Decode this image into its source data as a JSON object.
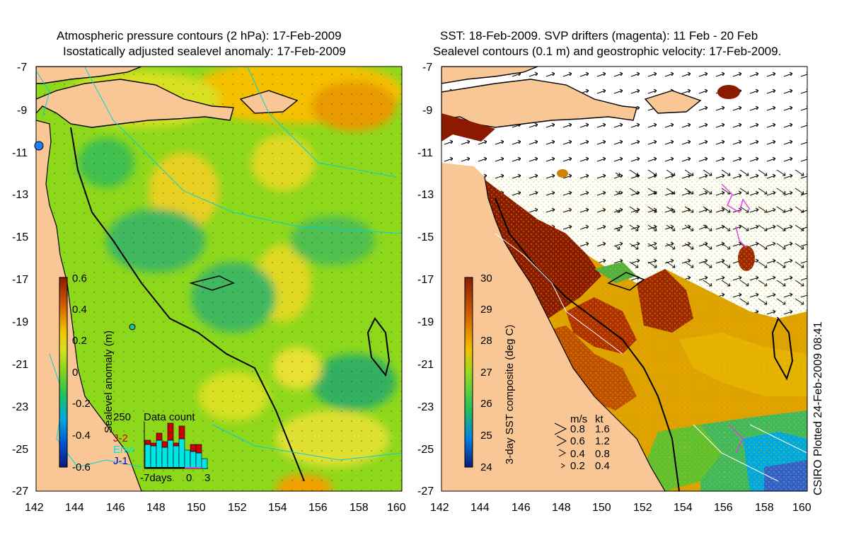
{
  "left_panel": {
    "title_line1": "Atmospheric pressure contours (2 hPa): 17-Feb-2009",
    "title_line2": "Isostatically adjusted sealevel anomaly: 17-Feb-2009",
    "x_ticks": [
      "142",
      "144",
      "146",
      "148",
      "150",
      "152",
      "154",
      "156",
      "158",
      "160"
    ],
    "y_ticks": [
      "-7",
      "-9",
      "-11",
      "-13",
      "-15",
      "-17",
      "-19",
      "-21",
      "-23",
      "-25",
      "-27"
    ],
    "colorbar": {
      "label": "Sealevel anomaly (m)",
      "ticks": [
        "0.6",
        "0.4",
        "0.2",
        "0",
        "-0.2",
        "-0.4",
        "-0.6"
      ],
      "range": [
        -0.6,
        0.6
      ]
    },
    "data_count": {
      "title": "Data count",
      "max_label": "250",
      "series": [
        {
          "name": "J-2",
          "color": "#cc0000"
        },
        {
          "name": "Envi",
          "color": "#00e5e5"
        },
        {
          "name": "J-1",
          "color": "#0000cc"
        }
      ],
      "x_labels": {
        "start": "-7days",
        "zero": "0",
        "end": "3"
      }
    }
  },
  "right_panel": {
    "title_line1": "SST: 18-Feb-2009. SVP drifters (magenta): 11 Feb - 20 Feb",
    "title_line2": "Sealevel contours (0.1 m) and geostrophic velocity: 17-Feb-2009.",
    "x_ticks": [
      "142",
      "144",
      "146",
      "148",
      "150",
      "152",
      "154",
      "156",
      "158",
      "160"
    ],
    "y_ticks": [
      "-7",
      "-9",
      "-11",
      "-13",
      "-15",
      "-17",
      "-19",
      "-21",
      "-23",
      "-25",
      "-27"
    ],
    "colorbar": {
      "label": "3-day SST composite (deg C)",
      "ticks": [
        "30",
        "29",
        "28",
        "27",
        "26",
        "25",
        "24"
      ],
      "range": [
        24,
        30
      ]
    },
    "velocity_legend": {
      "header_ms": "m/s",
      "header_kt": "kt",
      "rows": [
        {
          "ms": "0.8",
          "kt": "1.6"
        },
        {
          "ms": "0.6",
          "kt": "1.2"
        },
        {
          "ms": "0.4",
          "kt": "0.8"
        },
        {
          "ms": "0.2",
          "kt": "0.4"
        }
      ]
    }
  },
  "credit": "CSIRO Plotted 24-Feb-2009 08:41",
  "colors": {
    "land": "#f9c796",
    "ssh_high": "#a02000",
    "ssh_mid": "#7ed321",
    "ssh_low": "#0a1a7a",
    "sst_hot": "#8b1a00",
    "sst_mid": "#f0b000",
    "sst_cold": "#0a1a7a",
    "drifter": "#e040e0"
  }
}
